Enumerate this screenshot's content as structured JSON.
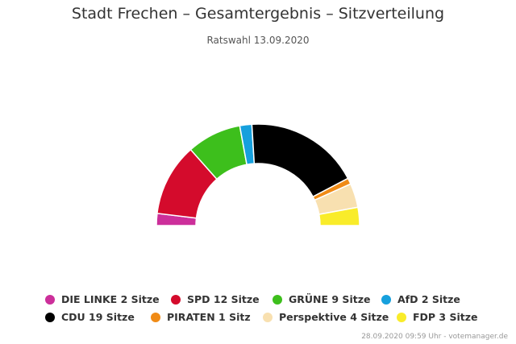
{
  "chart_data": {
    "type": "pie",
    "variant": "semicircle",
    "title": "Stadt Frechen – Gesamtergebnis – Sitzverteilung",
    "subtitle": "Ratswahl 13.09.2020",
    "unit": "Sitze",
    "series": [
      {
        "name": "DIE LINKE",
        "value": 2,
        "color": "#cc2f9a",
        "legend_label": "DIE LINKE 2 Sitze"
      },
      {
        "name": "SPD",
        "value": 12,
        "color": "#d40b2c",
        "legend_label": "SPD 12 Sitze"
      },
      {
        "name": "GRÜNE",
        "value": 9,
        "color": "#3dbf1c",
        "legend_label": "GRÜNE 9 Sitze"
      },
      {
        "name": "AfD",
        "value": 2,
        "color": "#16a0dd",
        "legend_label": "AfD 2 Sitze"
      },
      {
        "name": "CDU",
        "value": 19,
        "color": "#000000",
        "legend_label": "CDU 19 Sitze"
      },
      {
        "name": "PIRATEN",
        "value": 1,
        "color": "#f08b16",
        "legend_label": "PIRATEN 1 Sitz"
      },
      {
        "name": "Perspektive",
        "value": 4,
        "color": "#f8e0b0",
        "legend_label": "Perspektive 4 Sitze"
      },
      {
        "name": "FDP",
        "value": 3,
        "color": "#f9ec2a",
        "legend_label": "FDP 3 Sitze"
      }
    ],
    "legend_position": "bottom",
    "grid": false
  },
  "legend_rows": [
    [
      0,
      1,
      2,
      3
    ],
    [
      4,
      5,
      6,
      7
    ]
  ],
  "credit": "28.09.2020 09:59 Uhr - votemanager.de"
}
